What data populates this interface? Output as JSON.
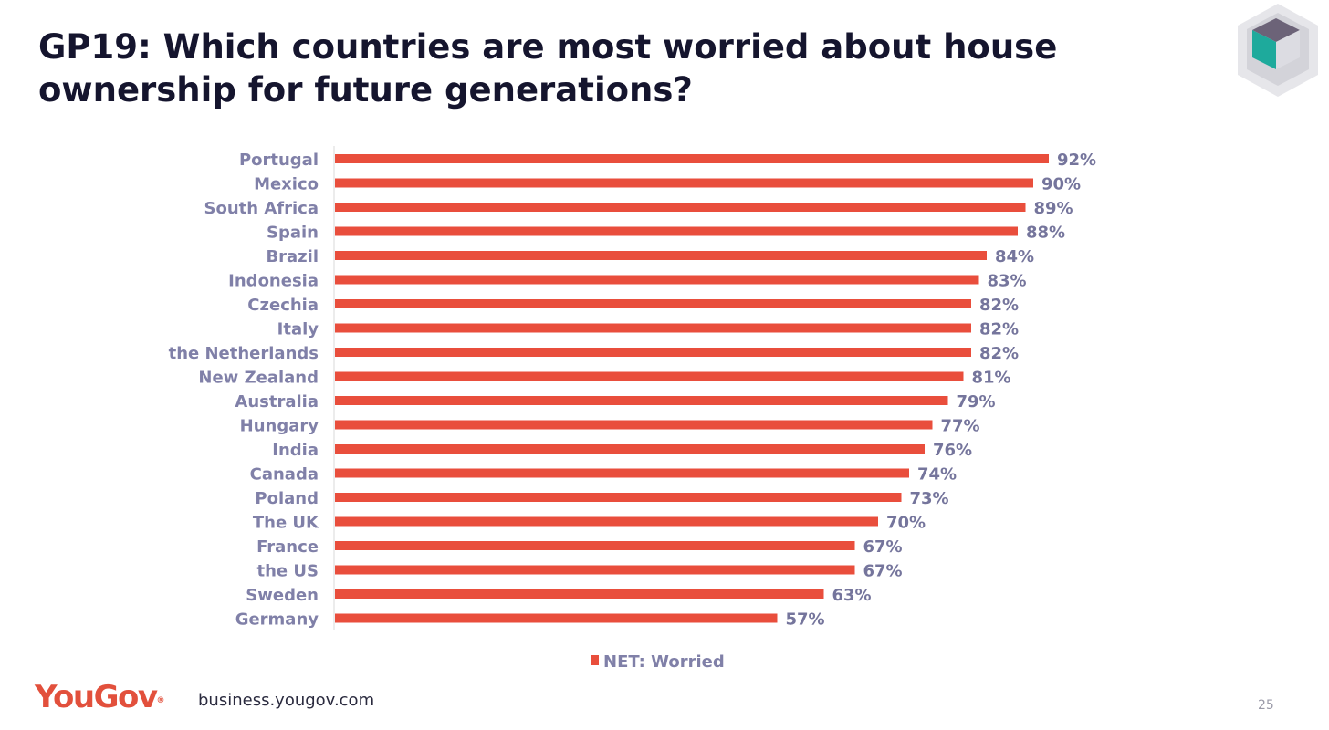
{
  "slide": {
    "title": "GP19: Which countries are most worried about house ownership for future generations?",
    "website": "business.yougov.com",
    "page_number": "25",
    "brand": {
      "name": "YouGov",
      "mark": "®",
      "color": "#e2503c"
    },
    "corner_logo_icon": "cube-icon"
  },
  "chart_data": {
    "type": "bar",
    "orientation": "horizontal",
    "title": "",
    "xlabel": "",
    "ylabel": "",
    "xlim": [
      0,
      100
    ],
    "grid": false,
    "legend_position": "bottom",
    "categories": [
      "Portugal",
      "Mexico",
      "South Africa",
      "Spain",
      "Brazil",
      "Indonesia",
      "Czechia",
      "Italy",
      "the Netherlands",
      "New Zealand",
      "Australia",
      "Hungary",
      "India",
      "Canada",
      "Poland",
      "The UK",
      "France",
      "the US",
      "Sweden",
      "Germany"
    ],
    "series": [
      {
        "name": "NET: Worried",
        "color": "#e94e3c",
        "values": [
          92,
          90,
          89,
          88,
          84,
          83,
          82,
          82,
          82,
          81,
          79,
          77,
          76,
          74,
          73,
          70,
          67,
          67,
          63,
          57
        ],
        "labels": [
          "92%",
          "90%",
          "89%",
          "88%",
          "84%",
          "83%",
          "82%",
          "82%",
          "82%",
          "81%",
          "79%",
          "77%",
          "76%",
          "74%",
          "73%",
          "70%",
          "67%",
          "67%",
          "63%",
          "57%"
        ]
      }
    ]
  }
}
